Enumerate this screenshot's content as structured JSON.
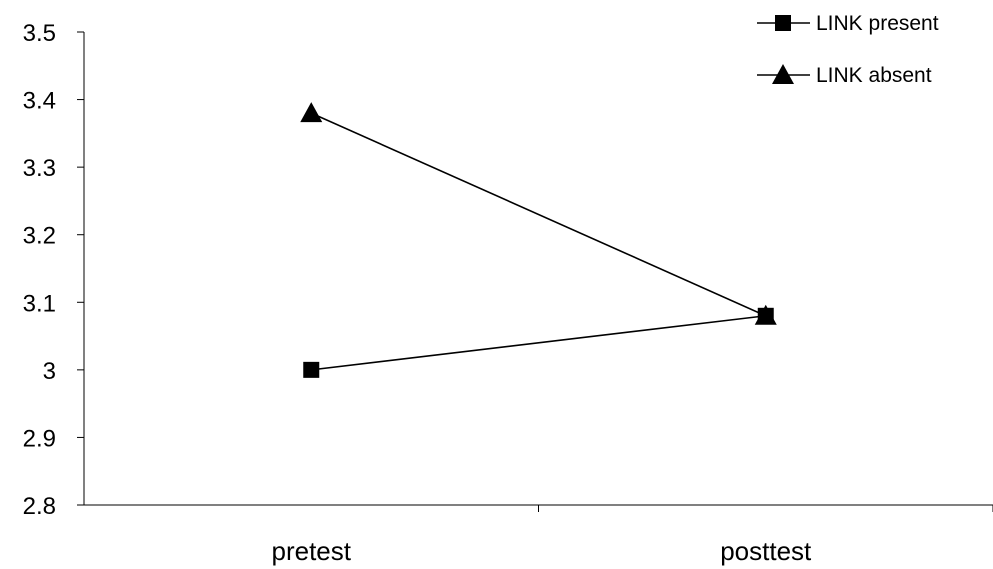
{
  "chart_data": {
    "type": "line",
    "categories": [
      "pretest",
      "posttest"
    ],
    "series": [
      {
        "name": "LINK present",
        "marker": "square",
        "color": "#000000",
        "values": [
          3.0,
          3.08
        ]
      },
      {
        "name": "LINK absent",
        "marker": "triangle",
        "color": "#000000",
        "values": [
          3.38,
          3.08
        ]
      }
    ],
    "y_ticks": [
      "2.8",
      "2.9",
      "3",
      "3.1",
      "3.2",
      "3.3",
      "3.4",
      "3.5"
    ],
    "ylim": [
      2.8,
      3.5
    ],
    "title": "",
    "xlabel": "",
    "ylabel": "",
    "grid": false,
    "legend_position": "top-right"
  }
}
